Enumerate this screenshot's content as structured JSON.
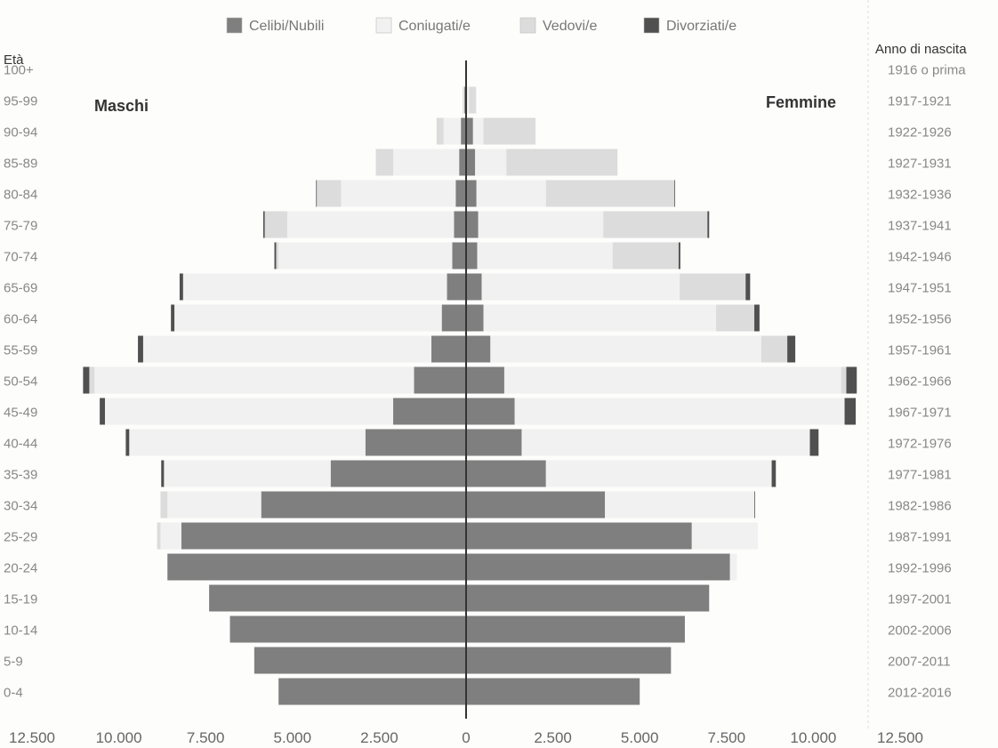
{
  "chart_data": {
    "type": "bar",
    "orientation": "horizontal-population-pyramid",
    "age_axis_title": "Età",
    "year_axis_title": "Anno di nascita",
    "left_label": "Maschi",
    "right_label": "Femmine",
    "x_ticks": [
      "12.500",
      "10.000",
      "7.500",
      "5.000",
      "2.500",
      "0",
      "2.500",
      "5.000",
      "7.500",
      "10.000",
      "12.500"
    ],
    "x_range": [
      -12500,
      12500
    ],
    "legend_position": "top",
    "grid": false,
    "series": [
      {
        "name": "Celibi/Nubili",
        "color": "#7f7f7f"
      },
      {
        "name": "Coniugati/e",
        "color": "#f1f1f1"
      },
      {
        "name": "Vedovi/e",
        "color": "#dcdcdc"
      },
      {
        "name": "Divorziati/e",
        "color": "#505050"
      }
    ],
    "age_groups": [
      "0-4",
      "5-9",
      "10-14",
      "15-19",
      "20-24",
      "25-29",
      "30-34",
      "35-39",
      "40-44",
      "45-49",
      "50-54",
      "55-59",
      "60-64",
      "65-69",
      "70-74",
      "75-79",
      "80-84",
      "85-89",
      "90-94",
      "95-99",
      "100+"
    ],
    "birth_years": [
      "2012-2016",
      "2007-2011",
      "2002-2006",
      "1997-2001",
      "1992-1996",
      "1987-1991",
      "1982-1986",
      "1977-1981",
      "1972-1976",
      "1967-1971",
      "1962-1966",
      "1957-1961",
      "1952-1956",
      "1947-1951",
      "1942-1946",
      "1937-1941",
      "1932-1936",
      "1927-1931",
      "1922-1926",
      "1917-1921",
      "1916 o prima"
    ],
    "males": {
      "Celibi/Nubili": [
        5400,
        6100,
        6800,
        7400,
        8600,
        8200,
        5900,
        3900,
        2900,
        2100,
        1500,
        1000,
        700,
        550,
        400,
        350,
        300,
        200,
        150,
        50,
        0
      ],
      "Coniugati/e": [
        0,
        0,
        0,
        0,
        0,
        600,
        2700,
        4800,
        6800,
        8300,
        9200,
        8300,
        7700,
        7600,
        5000,
        4800,
        3300,
        1900,
        500,
        20,
        0
      ],
      "Vedovi/e": [
        0,
        0,
        0,
        0,
        0,
        100,
        200,
        0,
        0,
        0,
        150,
        0,
        0,
        0,
        70,
        650,
        700,
        500,
        200,
        30,
        0
      ],
      "Divorziati/e": [
        0,
        0,
        0,
        0,
        0,
        0,
        0,
        80,
        100,
        150,
        180,
        150,
        100,
        100,
        50,
        40,
        20,
        0,
        0,
        0,
        0
      ]
    },
    "females": {
      "Celibi/Nubili": [
        5000,
        5900,
        6300,
        7000,
        7600,
        6500,
        4000,
        2300,
        1600,
        1400,
        1100,
        700,
        500,
        450,
        320,
        350,
        300,
        260,
        200,
        30,
        0
      ],
      "Coniugati/e": [
        0,
        0,
        0,
        0,
        200,
        1900,
        4300,
        6500,
        8300,
        9500,
        9700,
        7800,
        6700,
        5700,
        3900,
        3600,
        2000,
        900,
        300,
        60,
        0
      ],
      "Vedovi/e": [
        0,
        0,
        0,
        0,
        0,
        0,
        0,
        0,
        0,
        0,
        150,
        750,
        1100,
        1900,
        1900,
        3000,
        3700,
        3200,
        1500,
        200,
        0
      ],
      "Divorziati/e": [
        0,
        0,
        0,
        0,
        0,
        0,
        20,
        120,
        250,
        320,
        300,
        230,
        150,
        130,
        50,
        50,
        20,
        0,
        0,
        0,
        0
      ]
    }
  }
}
